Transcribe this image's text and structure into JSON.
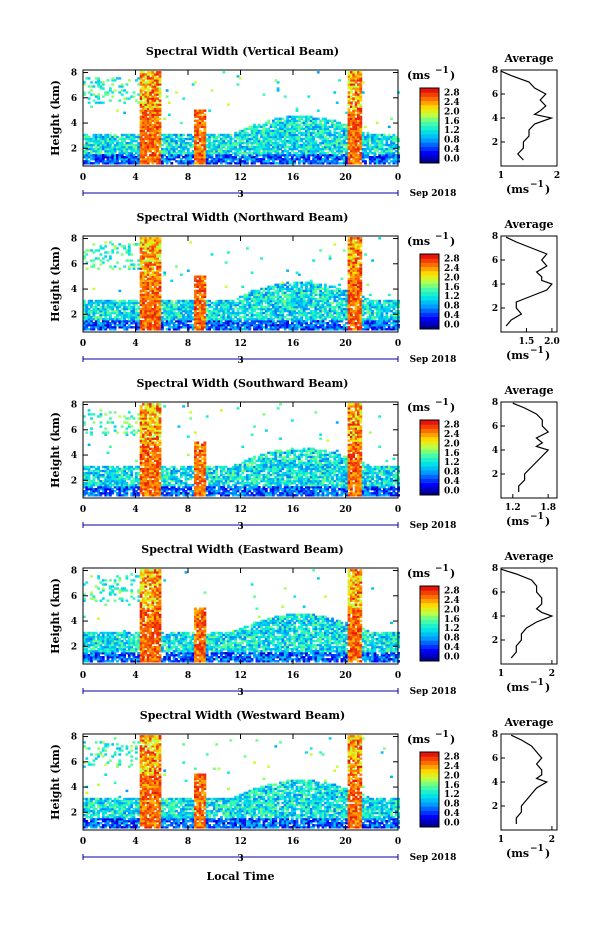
{
  "figure": {
    "xlabel": "Local Time",
    "date_label": "Sep 2018",
    "day_label": "3",
    "colorbar_unit": "(ms",
    "colorbar_unit_exp": "−1",
    "avg_title": "Average",
    "avg_xlabel": "(ms",
    "avg_xlabel_exp": "−1",
    "ylabel": "Height (km)"
  },
  "chart_data": [
    {
      "type": "heatmap",
      "title": "Spectral Width (Vertical Beam)",
      "x_ticks": [
        "0",
        "4",
        "8",
        "12",
        "16",
        "20",
        "0"
      ],
      "y_ticks": [
        "2",
        "4",
        "6",
        "8"
      ],
      "xlim": [
        0,
        24
      ],
      "ylim": [
        0.6,
        8.2
      ],
      "colorbar_ticks": [
        "0.0",
        "0.4",
        "0.8",
        "1.2",
        "1.6",
        "2.0",
        "2.4",
        "2.8"
      ],
      "avg_profile": {
        "x_ticks": [
          "1",
          "2"
        ],
        "xlim": [
          1,
          2
        ],
        "ylim": [
          0,
          8
        ],
        "y_ticks": [
          "2",
          "4",
          "6",
          "8"
        ],
        "height": [
          0.5,
          1.0,
          1.5,
          2.0,
          2.5,
          3.0,
          3.5,
          4.0,
          4.3,
          4.6,
          5.0,
          5.5,
          6.0,
          6.5,
          7.0,
          7.5,
          7.9
        ],
        "width": [
          1.4,
          1.3,
          1.4,
          1.4,
          1.5,
          1.5,
          1.6,
          1.9,
          1.6,
          1.7,
          1.8,
          1.7,
          1.8,
          1.6,
          1.5,
          1.2,
          1.0
        ]
      }
    },
    {
      "type": "heatmap",
      "title": "Spectral Width (Northward Beam)",
      "x_ticks": [
        "0",
        "4",
        "8",
        "12",
        "16",
        "20",
        "0"
      ],
      "y_ticks": [
        "2",
        "4",
        "6",
        "8"
      ],
      "xlim": [
        0,
        24
      ],
      "ylim": [
        0.6,
        8.2
      ],
      "colorbar_ticks": [
        "0.0",
        "0.4",
        "0.8",
        "1.2",
        "1.6",
        "2.0",
        "2.4",
        "2.8"
      ],
      "avg_profile": {
        "x_ticks": [
          "1.5",
          "2.0"
        ],
        "xlim": [
          1.0,
          2.1
        ],
        "ylim": [
          0,
          8
        ],
        "y_ticks": [
          "2",
          "4",
          "6",
          "8"
        ],
        "height": [
          0.5,
          1.0,
          1.5,
          2.0,
          2.5,
          3.0,
          3.5,
          4.0,
          4.3,
          4.6,
          5.0,
          5.5,
          6.0,
          6.5,
          7.0,
          7.5,
          7.9
        ],
        "width": [
          1.1,
          1.2,
          1.4,
          1.3,
          1.3,
          1.6,
          1.9,
          2.0,
          1.8,
          1.8,
          1.7,
          1.9,
          1.8,
          1.9,
          1.6,
          1.3,
          1.1
        ]
      }
    },
    {
      "type": "heatmap",
      "title": "Spectral Width (Southward Beam)",
      "x_ticks": [
        "0",
        "4",
        "8",
        "12",
        "16",
        "20",
        "0"
      ],
      "y_ticks": [
        "2",
        "4",
        "6",
        "8"
      ],
      "xlim": [
        0,
        24
      ],
      "ylim": [
        0.6,
        8.2
      ],
      "colorbar_ticks": [
        "0.0",
        "0.4",
        "0.8",
        "1.2",
        "1.6",
        "2.0",
        "2.4",
        "2.8"
      ],
      "avg_profile": {
        "x_ticks": [
          "1.2",
          "1.8"
        ],
        "xlim": [
          1.0,
          1.95
        ],
        "ylim": [
          0,
          8
        ],
        "y_ticks": [
          "2",
          "4",
          "6",
          "8"
        ],
        "height": [
          0.5,
          1.0,
          1.5,
          2.0,
          2.5,
          3.0,
          3.5,
          4.0,
          4.3,
          4.6,
          5.0,
          5.5,
          6.0,
          6.5,
          7.0,
          7.5,
          7.9
        ],
        "width": [
          1.3,
          1.3,
          1.4,
          1.4,
          1.5,
          1.6,
          1.7,
          1.8,
          1.6,
          1.7,
          1.6,
          1.8,
          1.7,
          1.7,
          1.6,
          1.4,
          1.2
        ]
      }
    },
    {
      "type": "heatmap",
      "title": "Spectral Width (Eastward Beam)",
      "x_ticks": [
        "0",
        "4",
        "8",
        "12",
        "16",
        "20",
        "0"
      ],
      "y_ticks": [
        "2",
        "4",
        "6",
        "8"
      ],
      "xlim": [
        0,
        24
      ],
      "ylim": [
        0.6,
        8.2
      ],
      "colorbar_ticks": [
        "0.0",
        "0.4",
        "0.8",
        "1.2",
        "1.6",
        "2.0",
        "2.4",
        "2.8"
      ],
      "avg_profile": {
        "x_ticks": [
          "1",
          "2"
        ],
        "xlim": [
          1,
          2.1
        ],
        "ylim": [
          0,
          8
        ],
        "y_ticks": [
          "2",
          "4",
          "6",
          "8"
        ],
        "height": [
          0.5,
          1.0,
          1.5,
          2.0,
          2.5,
          3.0,
          3.5,
          4.0,
          4.3,
          4.6,
          5.0,
          5.5,
          6.0,
          6.5,
          7.0,
          7.5,
          7.9
        ],
        "width": [
          1.2,
          1.3,
          1.3,
          1.4,
          1.4,
          1.5,
          1.7,
          2.0,
          1.8,
          1.7,
          1.8,
          1.8,
          1.7,
          1.7,
          1.6,
          1.3,
          1.0
        ]
      }
    },
    {
      "type": "heatmap",
      "title": "Spectral Width (Westward Beam)",
      "x_ticks": [
        "0",
        "4",
        "8",
        "12",
        "16",
        "20",
        "0"
      ],
      "y_ticks": [
        "2",
        "4",
        "6",
        "8"
      ],
      "xlim": [
        0,
        24
      ],
      "ylim": [
        0.6,
        8.2
      ],
      "colorbar_ticks": [
        "0.0",
        "0.4",
        "0.8",
        "1.2",
        "1.6",
        "2.0",
        "2.4",
        "2.8"
      ],
      "avg_profile": {
        "x_ticks": [
          "1",
          "2"
        ],
        "xlim": [
          1,
          2.1
        ],
        "ylim": [
          0,
          8
        ],
        "y_ticks": [
          "2",
          "4",
          "6",
          "8"
        ],
        "height": [
          0.5,
          1.0,
          1.5,
          2.0,
          2.5,
          3.0,
          3.5,
          4.0,
          4.3,
          4.6,
          5.0,
          5.5,
          6.0,
          6.5,
          7.0,
          7.5,
          7.9
        ],
        "width": [
          1.3,
          1.3,
          1.4,
          1.4,
          1.5,
          1.6,
          1.7,
          1.9,
          1.7,
          1.8,
          1.8,
          1.7,
          1.8,
          1.7,
          1.6,
          1.4,
          1.2
        ]
      }
    }
  ]
}
